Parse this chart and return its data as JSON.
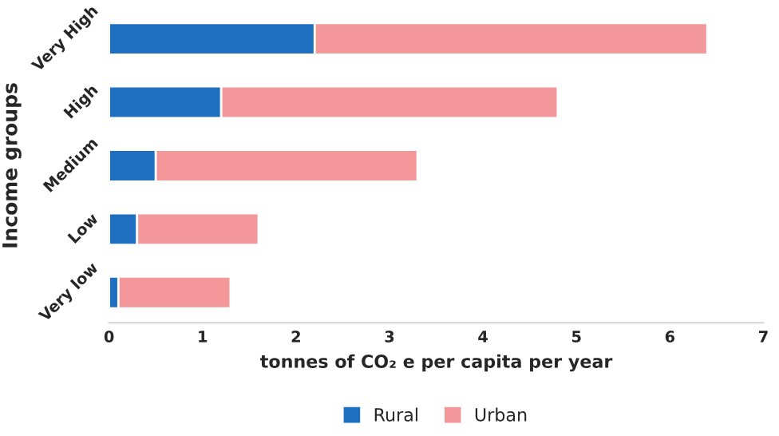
{
  "chart_data": {
    "type": "bar",
    "orientation": "horizontal",
    "stacked": true,
    "categories": [
      "Very High",
      "High",
      "Medium",
      "Low",
      "Very low"
    ],
    "series": [
      {
        "name": "Rural",
        "color": "#1f6fc0",
        "values": [
          2.2,
          1.2,
          0.5,
          0.3,
          0.1
        ]
      },
      {
        "name": "Urban",
        "color": "#f4979b",
        "values": [
          4.2,
          3.6,
          2.8,
          1.3,
          1.2
        ]
      }
    ],
    "xlim": [
      0,
      7
    ],
    "xticks": [
      0,
      1,
      2,
      3,
      4,
      5,
      6,
      7
    ],
    "xlabel": "tonnes of CO₂ e per capita per year",
    "ylabel": "Income groups",
    "grid": false,
    "legend": "bottom"
  }
}
